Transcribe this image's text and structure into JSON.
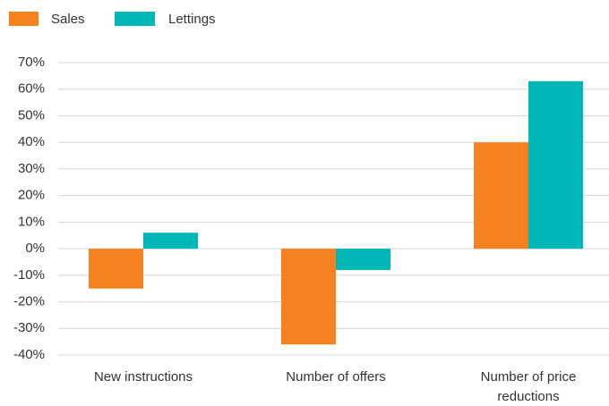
{
  "chart_data": {
    "type": "bar",
    "categories": [
      "New instructions",
      "Number of offers",
      "Number of price reductions"
    ],
    "series": [
      {
        "name": "Sales",
        "color": "#f5821f",
        "values": [
          -15,
          -36,
          40
        ]
      },
      {
        "name": "Lettings",
        "color": "#00b7b7",
        "values": [
          6,
          -8,
          63
        ]
      }
    ],
    "ylim": [
      -40,
      70
    ],
    "yticks": [
      {
        "value": -40,
        "label": "-40%"
      },
      {
        "value": -30,
        "label": "-30%"
      },
      {
        "value": -20,
        "label": "-20%"
      },
      {
        "value": -10,
        "label": "-10%"
      },
      {
        "value": 0,
        "label": "0%"
      },
      {
        "value": 10,
        "label": "10%"
      },
      {
        "value": 20,
        "label": "20%"
      },
      {
        "value": 30,
        "label": "30%"
      },
      {
        "value": 40,
        "label": "40%"
      },
      {
        "value": 50,
        "label": "50%"
      },
      {
        "value": 60,
        "label": "60%"
      },
      {
        "value": 70,
        "label": "70%"
      }
    ],
    "grid": true,
    "legend": "top-left"
  }
}
